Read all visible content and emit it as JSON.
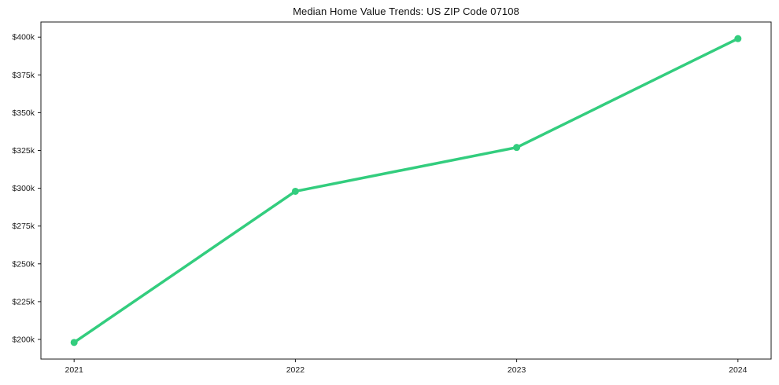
{
  "chart_data": {
    "type": "line",
    "title": "Median Home Value Trends: US ZIP Code 07108",
    "xlabel": "",
    "ylabel": "",
    "categories": [
      "2021",
      "2022",
      "2023",
      "2024"
    ],
    "series": [
      {
        "name": "Median home value",
        "values_k_usd": [
          198,
          298,
          327,
          399
        ]
      }
    ],
    "y_ticks": [
      {
        "value": 200,
        "label": "$200k"
      },
      {
        "value": 225,
        "label": "$225k"
      },
      {
        "value": 250,
        "label": "$250k"
      },
      {
        "value": 275,
        "label": "$275k"
      },
      {
        "value": 300,
        "label": "$300k"
      },
      {
        "value": 325,
        "label": "$325k"
      },
      {
        "value": 350,
        "label": "$350k"
      },
      {
        "value": 375,
        "label": "$375k"
      },
      {
        "value": 400,
        "label": "$400k"
      }
    ],
    "ylim": [
      187,
      410
    ],
    "grid": false,
    "legend": "none",
    "line_color": "#33cd7e",
    "marker_color": "#33cd7e",
    "axis_color": "#1a1a1a",
    "background_color": "#ffffff"
  }
}
